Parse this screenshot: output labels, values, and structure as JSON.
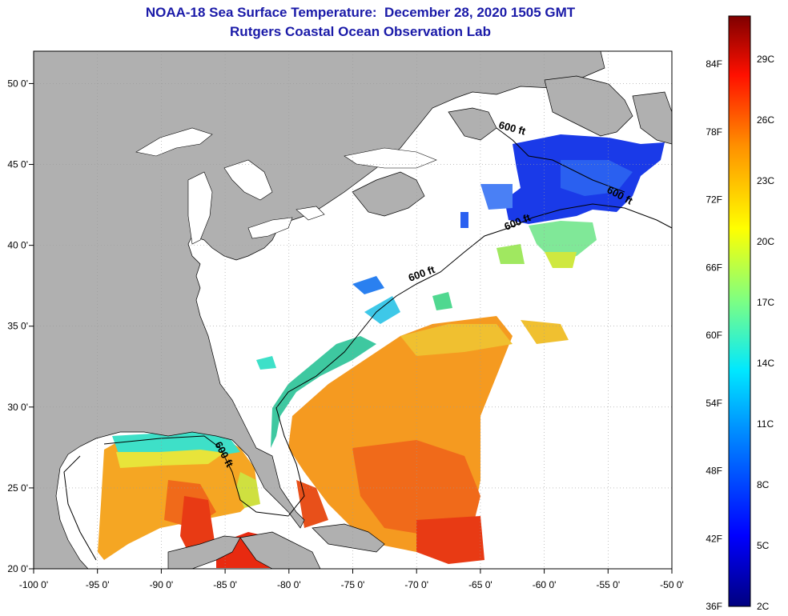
{
  "header": {
    "title": "NOAA-18 Sea Surface Temperature:  December 28, 2020 1505 GMT",
    "subtitle": "Rutgers Coastal Ocean Observation Lab"
  },
  "map": {
    "lon_range": [
      -100,
      -50
    ],
    "lat_range": [
      20,
      52
    ],
    "lon_ticks": [
      {
        "value": -100,
        "label": "-100 0'"
      },
      {
        "value": -95,
        "label": "-95 0'"
      },
      {
        "value": -90,
        "label": "-90 0'"
      },
      {
        "value": -85,
        "label": "-85 0'"
      },
      {
        "value": -80,
        "label": "-80 0'"
      },
      {
        "value": -75,
        "label": "-75 0'"
      },
      {
        "value": -70,
        "label": "-70 0'"
      },
      {
        "value": -65,
        "label": "-65 0'"
      },
      {
        "value": -60,
        "label": "-60 0'"
      },
      {
        "value": -55,
        "label": "-55 0'"
      },
      {
        "value": -50,
        "label": "-50 0'"
      }
    ],
    "lat_ticks": [
      {
        "value": 20,
        "label": "20 0'"
      },
      {
        "value": 25,
        "label": "25 0'"
      },
      {
        "value": 30,
        "label": "30 0'"
      },
      {
        "value": 35,
        "label": "35 0'"
      },
      {
        "value": 40,
        "label": "40 0'"
      },
      {
        "value": 45,
        "label": "45 0'"
      },
      {
        "value": 50,
        "label": "50 0'"
      }
    ],
    "contour_labels": [
      {
        "text": "600 ft"
      },
      {
        "text": "600 ft"
      },
      {
        "text": "600 ft"
      },
      {
        "text": "600 ft"
      },
      {
        "text": "600 ft"
      }
    ],
    "colors": {
      "land": "#b0b0b0",
      "water_nodata": "#ffffff",
      "grid": "#9a9a9a"
    }
  },
  "colorbar": {
    "fahrenheit": [
      "84F",
      "78F",
      "72F",
      "66F",
      "60F",
      "54F",
      "48F",
      "42F",
      "36F"
    ],
    "celsius": [
      "29C",
      "26C",
      "23C",
      "20C",
      "17C",
      "14C",
      "11C",
      "8C",
      "5C",
      "2C"
    ]
  }
}
